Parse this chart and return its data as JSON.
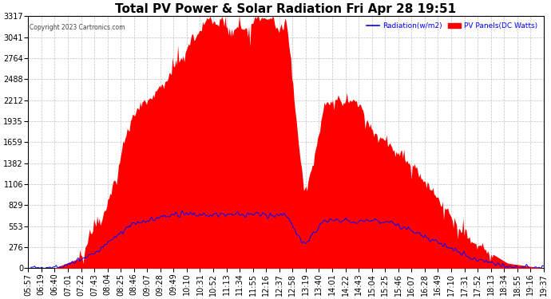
{
  "title": "Total PV Power & Solar Radiation Fri Apr 28 19:51",
  "copyright": "Copyright 2023 Cartronics.com",
  "legend_radiation": "Radiation(w/m2)",
  "legend_panels": "PV Panels(DC Watts)",
  "y_ticks": [
    0.0,
    276.4,
    552.9,
    829.3,
    1105.7,
    1382.2,
    1658.6,
    1935.0,
    2211.5,
    2487.9,
    2764.3,
    3040.7,
    3317.2
  ],
  "y_max": 3317.2,
  "y_min": 0.0,
  "background_color": "#ffffff",
  "plot_bg_color": "#ffffff",
  "grid_color": "#aaaaaa",
  "fill_color": "#ff0000",
  "line_color": "#0000ff",
  "title_fontsize": 11,
  "tick_fontsize": 7,
  "x_labels": [
    "05:57",
    "06:19",
    "06:40",
    "07:01",
    "07:22",
    "07:43",
    "08:04",
    "08:25",
    "08:46",
    "09:07",
    "09:28",
    "09:49",
    "10:10",
    "10:31",
    "10:52",
    "11:13",
    "11:34",
    "11:55",
    "12:16",
    "12:37",
    "12:58",
    "13:19",
    "13:40",
    "14:01",
    "14:22",
    "14:43",
    "15:04",
    "15:25",
    "15:46",
    "16:07",
    "16:28",
    "16:49",
    "17:10",
    "17:31",
    "17:52",
    "18:13",
    "18:34",
    "18:55",
    "19:16",
    "19:37"
  ],
  "num_points": 480,
  "pv_peak": 3317.2,
  "radiation_peak": 829.3,
  "title_color": "#000000",
  "radiation_color": "#0000ff",
  "panels_color": "#ff0000"
}
